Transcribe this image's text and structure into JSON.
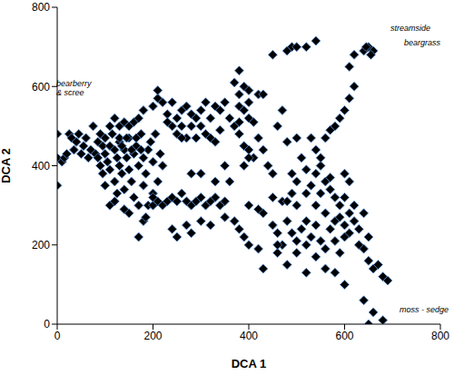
{
  "chart_data": {
    "type": "scatter",
    "x_label": "DCA 1",
    "y_label": "DCA 2",
    "xlim": [
      0,
      800
    ],
    "xticks": [
      0,
      200,
      400,
      600,
      800
    ],
    "ylim": [
      0,
      800
    ],
    "yticks": [
      0,
      200,
      400,
      600,
      800
    ],
    "grid": false,
    "marker": "diamond",
    "color": "#000000",
    "annotations": [
      "streamside",
      "beargrass",
      "bearberry & scree",
      "moss - sedge"
    ],
    "x": [
      0,
      0,
      0,
      10,
      15,
      20,
      25,
      30,
      35,
      40,
      45,
      50,
      55,
      60,
      65,
      70,
      75,
      80,
      85,
      90,
      95,
      100,
      100,
      105,
      110,
      110,
      115,
      120,
      120,
      125,
      130,
      130,
      135,
      140,
      140,
      145,
      150,
      150,
      155,
      160,
      160,
      165,
      170,
      170,
      175,
      180,
      180,
      185,
      190,
      190,
      195,
      200,
      200,
      205,
      210,
      215,
      220,
      110,
      120,
      125,
      100,
      95,
      90,
      85,
      130,
      140,
      150,
      160,
      120,
      110,
      170,
      180,
      130,
      135,
      145,
      155,
      165,
      175,
      140,
      150,
      170,
      180,
      185,
      200,
      200,
      210,
      210,
      220,
      230,
      240,
      240,
      250,
      260,
      260,
      270,
      280,
      280,
      290,
      300,
      300,
      310,
      320,
      330,
      340,
      350,
      360,
      370,
      380,
      390,
      400,
      410,
      420,
      400,
      380,
      230,
      250,
      270,
      290,
      310,
      320,
      330,
      340,
      260,
      200,
      210,
      220,
      230,
      240,
      250,
      260,
      270,
      280,
      290,
      300,
      310,
      320,
      330,
      340,
      350,
      240,
      270,
      280,
      250,
      300,
      320,
      350,
      370,
      380,
      390,
      400,
      300,
      280,
      330,
      350,
      360,
      400,
      420,
      430,
      380,
      370,
      390,
      380,
      400,
      390,
      400,
      410,
      380,
      420,
      430,
      440,
      450,
      400,
      390,
      450,
      460,
      470,
      480,
      490,
      500,
      500,
      510,
      520,
      520,
      530,
      540,
      540,
      550,
      560,
      560,
      570,
      580,
      580,
      590,
      590,
      600,
      600,
      610,
      610,
      620,
      620,
      630,
      630,
      640,
      640,
      650,
      650,
      660,
      670,
      680,
      690,
      640,
      650,
      660,
      680,
      600,
      580,
      560,
      520,
      480,
      460,
      430,
      420,
      450,
      470,
      500,
      520,
      530,
      540,
      550,
      560,
      570,
      580,
      550,
      540,
      530,
      520,
      510,
      500,
      490,
      480,
      460,
      600,
      610,
      570,
      550,
      540,
      590,
      600,
      500,
      490,
      560,
      570,
      580,
      590,
      600,
      610,
      620,
      610,
      620,
      640,
      650,
      660,
      655,
      645,
      430,
      450,
      480,
      490,
      500,
      520,
      540,
      480,
      460,
      470
    ],
    "values": [
      480,
      420,
      350,
      410,
      420,
      430,
      480,
      470,
      440,
      460,
      480,
      430,
      450,
      470,
      420,
      440,
      500,
      430,
      460,
      480,
      450,
      470,
      430,
      410,
      390,
      450,
      480,
      440,
      360,
      420,
      460,
      400,
      380,
      440,
      340,
      420,
      470,
      390,
      360,
      430,
      320,
      450,
      400,
      300,
      480,
      420,
      350,
      380,
      440,
      300,
      460,
      410,
      330,
      480,
      360,
      430,
      400,
      300,
      310,
      330,
      350,
      380,
      400,
      420,
      500,
      510,
      500,
      510,
      520,
      500,
      520,
      540,
      470,
      450,
      470,
      440,
      470,
      440,
      290,
      280,
      220,
      260,
      270,
      300,
      550,
      570,
      590,
      560,
      530,
      500,
      560,
      520,
      540,
      500,
      550,
      530,
      500,
      520,
      540,
      500,
      560,
      520,
      550,
      540,
      560,
      520,
      500,
      480,
      450,
      440,
      420,
      580,
      560,
      550,
      510,
      480,
      470,
      470,
      480,
      470,
      460,
      490,
      470,
      320,
      310,
      300,
      310,
      320,
      310,
      330,
      310,
      300,
      310,
      320,
      300,
      310,
      320,
      300,
      310,
      240,
      250,
      230,
      220,
      260,
      250,
      270,
      260,
      240,
      220,
      200,
      380,
      380,
      360,
      400,
      360,
      300,
      290,
      280,
      640,
      610,
      600,
      580,
      590,
      540,
      520,
      510,
      510,
      470,
      440,
      400,
      380,
      420,
      400,
      250,
      230,
      200,
      260,
      230,
      210,
      180,
      240,
      200,
      260,
      220,
      170,
      250,
      210,
      190,
      280,
      240,
      260,
      210,
      300,
      180,
      250,
      320,
      280,
      230,
      260,
      300,
      240,
      200,
      280,
      190,
      220,
      160,
      140,
      150,
      120,
      110,
      60,
      0,
      30,
      10,
      100,
      130,
      140,
      130,
      150,
      180,
      140,
      190,
      320,
      310,
      300,
      330,
      350,
      380,
      400,
      360,
      340,
      320,
      420,
      440,
      470,
      390,
      420,
      360,
      330,
      310,
      200,
      380,
      360,
      370,
      330,
      300,
      270,
      220,
      470,
      380,
      470,
      490,
      500,
      520,
      540,
      570,
      600,
      650,
      680,
      690,
      700,
      690,
      680,
      700,
      580,
      680,
      690,
      700,
      700,
      700,
      715,
      460,
      500,
      540
    ]
  }
}
